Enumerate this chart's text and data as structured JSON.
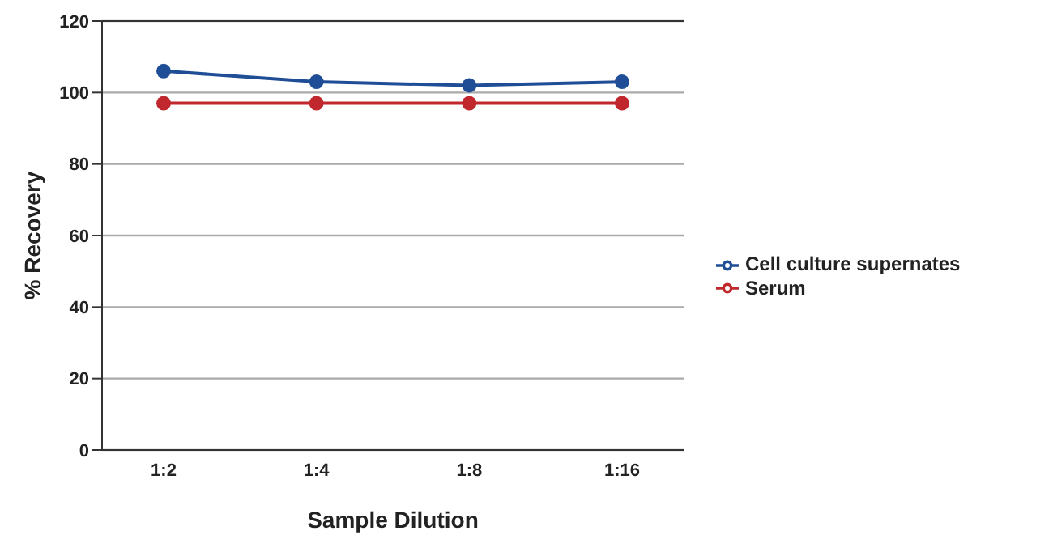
{
  "chart_data": {
    "type": "line",
    "xlabel": "Sample Dilution",
    "ylabel": "% Recovery",
    "categories": [
      "1:2",
      "1:4",
      "1:8",
      "1:16"
    ],
    "series": [
      {
        "name": "Cell culture supernates",
        "color": "#1f4e96",
        "values": [
          106,
          103,
          102,
          103
        ]
      },
      {
        "name": "Serum",
        "color": "#c0282d",
        "values": [
          97,
          97,
          97,
          97
        ]
      }
    ],
    "ylim": [
      0,
      120
    ],
    "yticks": [
      0,
      20,
      40,
      60,
      80,
      100,
      120
    ],
    "grid": "y",
    "legend": "right",
    "marker": "circle",
    "line_style": "solid"
  }
}
